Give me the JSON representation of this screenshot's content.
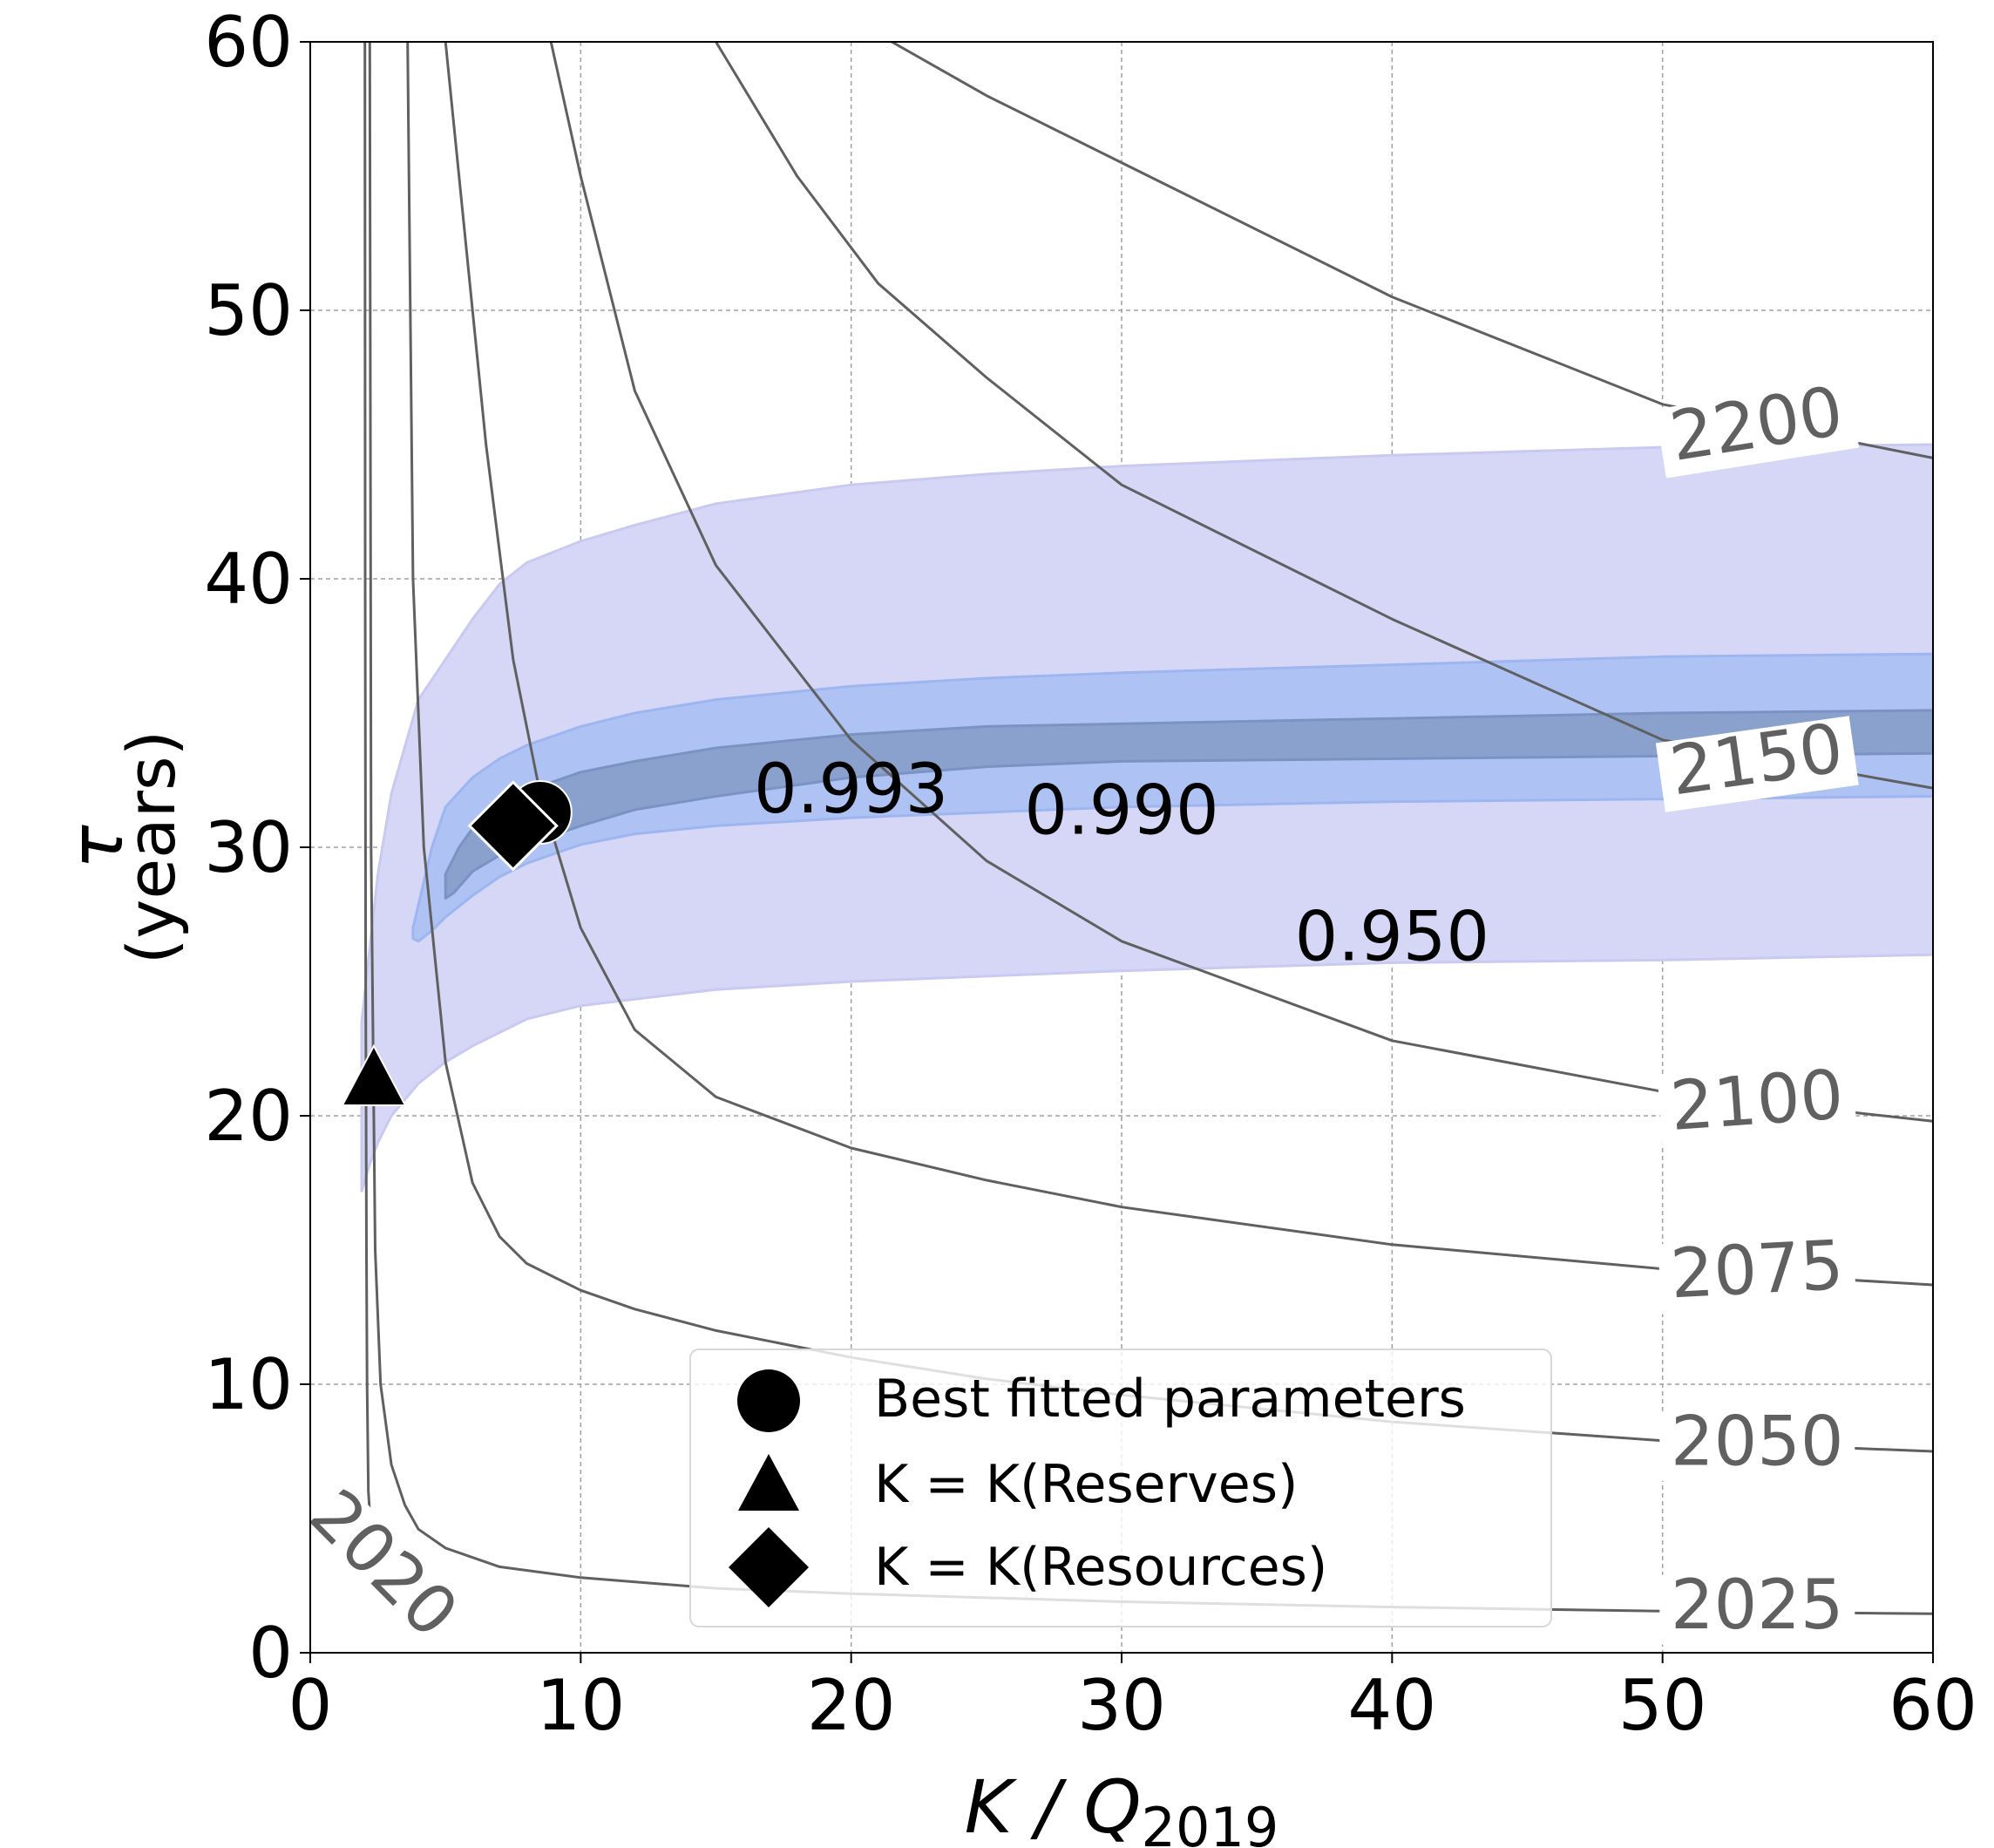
{
  "chart_data": {
    "type": "contour",
    "xlabel": "K / Q",
    "xlabel_subscript": "2019",
    "ylabel_symbol": "τ",
    "ylabel_units": "(years)",
    "xlim": [
      0,
      60
    ],
    "ylim": [
      0,
      60
    ],
    "xticks": [
      0,
      10,
      20,
      30,
      40,
      50,
      60
    ],
    "yticks": [
      0,
      10,
      20,
      30,
      40,
      50,
      60
    ],
    "grid": true,
    "colors": {
      "band_950": "#d6d6f6",
      "band_990": "#aec3f4",
      "band_993": "#8aa1ce",
      "contour": "#606060",
      "contour_label": "#606060",
      "marker": "#000000"
    },
    "confidence_regions": [
      {
        "level": "0.950",
        "label_pos": [
          40,
          26.5
        ],
        "upper": [
          [
            1.9,
            23.5
          ],
          [
            2.5,
            29
          ],
          [
            3,
            32
          ],
          [
            4,
            35.5
          ],
          [
            5,
            37
          ],
          [
            6,
            38.5
          ],
          [
            7,
            39.8
          ],
          [
            8,
            40.6
          ],
          [
            10,
            41.4
          ],
          [
            12,
            42
          ],
          [
            15,
            42.8
          ],
          [
            20,
            43.5
          ],
          [
            25,
            43.9
          ],
          [
            30,
            44.2
          ],
          [
            40,
            44.6
          ],
          [
            50,
            44.9
          ],
          [
            60,
            45
          ]
        ],
        "lower": [
          [
            60,
            26
          ],
          [
            50,
            25.8
          ],
          [
            40,
            25.7
          ],
          [
            30,
            25.4
          ],
          [
            20,
            25.0
          ],
          [
            15,
            24.7
          ],
          [
            10,
            24.1
          ],
          [
            8,
            23.6
          ],
          [
            6,
            22.6
          ],
          [
            5,
            22.0
          ],
          [
            4,
            21.2
          ],
          [
            3,
            20.0
          ],
          [
            2.5,
            19.0
          ],
          [
            2.2,
            18.2
          ],
          [
            1.9,
            17.2
          ]
        ]
      },
      {
        "level": "0.990",
        "label_pos": [
          30,
          31.2
        ],
        "upper": [
          [
            3.8,
            27
          ],
          [
            4.5,
            30
          ],
          [
            5,
            31.5
          ],
          [
            6,
            32.6
          ],
          [
            7,
            33.3
          ],
          [
            8,
            33.8
          ],
          [
            10,
            34.5
          ],
          [
            12,
            35
          ],
          [
            15,
            35.5
          ],
          [
            20,
            36
          ],
          [
            25,
            36.3
          ],
          [
            30,
            36.5
          ],
          [
            40,
            36.8
          ],
          [
            50,
            37.1
          ],
          [
            60,
            37.2
          ]
        ],
        "lower": [
          [
            60,
            31.9
          ],
          [
            50,
            31.8
          ],
          [
            40,
            31.7
          ],
          [
            30,
            31.5
          ],
          [
            20,
            31.1
          ],
          [
            15,
            30.8
          ],
          [
            12,
            30.5
          ],
          [
            10,
            30.1
          ],
          [
            8,
            29.4
          ],
          [
            7,
            28.9
          ],
          [
            6,
            28.2
          ],
          [
            5,
            27.4
          ],
          [
            4.5,
            26.9
          ],
          [
            4,
            26.5
          ],
          [
            3.8,
            26.6
          ]
        ]
      },
      {
        "level": "0.993",
        "label_pos": [
          20,
          32
        ],
        "upper": [
          [
            5,
            29
          ],
          [
            5.5,
            30
          ],
          [
            6,
            30.7
          ],
          [
            7,
            31.5
          ],
          [
            8,
            32.1
          ],
          [
            10,
            32.8
          ],
          [
            12,
            33.2
          ],
          [
            15,
            33.7
          ],
          [
            20,
            34.2
          ],
          [
            25,
            34.5
          ],
          [
            30,
            34.6
          ],
          [
            40,
            34.8
          ],
          [
            50,
            35
          ],
          [
            60,
            35.1
          ]
        ],
        "lower": [
          [
            60,
            33.5
          ],
          [
            50,
            33.4
          ],
          [
            40,
            33.3
          ],
          [
            30,
            33.2
          ],
          [
            25,
            33.0
          ],
          [
            20,
            32.6
          ],
          [
            15,
            31.9
          ],
          [
            12,
            31.4
          ],
          [
            10,
            30.8
          ],
          [
            8,
            30.1
          ],
          [
            7,
            29.7
          ],
          [
            6,
            29.1
          ],
          [
            5.3,
            28.3
          ],
          [
            5,
            28.1
          ]
        ]
      }
    ],
    "contours": [
      {
        "label": "2020",
        "points": [
          [
            2.02,
            60
          ],
          [
            2.03,
            40
          ],
          [
            2.05,
            25
          ],
          [
            2.08,
            15
          ],
          [
            2.1,
            10
          ],
          [
            2.15,
            6
          ],
          [
            2.2,
            5.2
          ]
        ],
        "label_pos": [
          2.6,
          3.2
        ],
        "label_angle": 45
      },
      {
        "label": "2025",
        "points": [
          [
            2.2,
            60
          ],
          [
            2.25,
            30
          ],
          [
            2.4,
            15
          ],
          [
            2.6,
            10
          ],
          [
            3,
            7
          ],
          [
            3.5,
            5.5
          ],
          [
            4,
            4.6
          ],
          [
            5,
            3.9
          ],
          [
            7,
            3.2
          ],
          [
            10,
            2.8
          ],
          [
            15,
            2.4
          ],
          [
            20,
            2.2
          ],
          [
            30,
            1.9
          ],
          [
            40,
            1.7
          ],
          [
            50,
            1.55
          ],
          [
            60,
            1.45
          ]
        ],
        "label_pos": [
          53.5,
          1.6
        ],
        "label_angle": 0
      },
      {
        "label": "2050",
        "points": [
          [
            3.6,
            60
          ],
          [
            3.8,
            40
          ],
          [
            4.2,
            30
          ],
          [
            5,
            22
          ],
          [
            6,
            17.5
          ],
          [
            7,
            15.5
          ],
          [
            8,
            14.5
          ],
          [
            10,
            13.5
          ],
          [
            12,
            12.8
          ],
          [
            15,
            12
          ],
          [
            20,
            11
          ],
          [
            25,
            10.2
          ],
          [
            30,
            9.6
          ],
          [
            40,
            8.6
          ],
          [
            50,
            7.9
          ],
          [
            60,
            7.5
          ]
        ],
        "label_pos": [
          53.5,
          7.7
        ],
        "label_angle": 0
      },
      {
        "label": "2075",
        "points": [
          [
            5,
            60
          ],
          [
            5.5,
            55
          ],
          [
            6.5,
            45
          ],
          [
            7.5,
            37
          ],
          [
            8.5,
            32
          ],
          [
            10,
            27
          ],
          [
            12,
            23.2
          ],
          [
            15,
            20.7
          ],
          [
            20,
            18.8
          ],
          [
            25,
            17.6
          ],
          [
            30,
            16.6
          ],
          [
            40,
            15.2
          ],
          [
            50,
            14.3
          ],
          [
            60,
            13.7
          ]
        ],
        "label_pos": [
          53.5,
          14.1
        ],
        "label_angle": -3
      },
      {
        "label": "2100",
        "points": [
          [
            8.9,
            60
          ],
          [
            10,
            55
          ],
          [
            12,
            47
          ],
          [
            15,
            40.5
          ],
          [
            20,
            34
          ],
          [
            25,
            29.5
          ],
          [
            30,
            26.5
          ],
          [
            40,
            22.8
          ],
          [
            50,
            20.9
          ],
          [
            60,
            19.8
          ]
        ],
        "label_pos": [
          53.5,
          20.4
        ],
        "label_angle": -4
      },
      {
        "label": "2150",
        "points": [
          [
            15,
            60
          ],
          [
            18,
            55
          ],
          [
            21,
            51
          ],
          [
            25,
            47.5
          ],
          [
            30,
            43.5
          ],
          [
            40,
            38.5
          ],
          [
            50,
            34
          ],
          [
            60,
            32.2
          ]
        ],
        "label_pos": [
          53.5,
          33.1
        ],
        "label_angle": -8
      },
      {
        "label": "2200",
        "points": [
          [
            21.5,
            60
          ],
          [
            25,
            58
          ],
          [
            30,
            55.5
          ],
          [
            40,
            50.5
          ],
          [
            50,
            46.5
          ],
          [
            60,
            44.5
          ]
        ],
        "label_pos": [
          53.5,
          45.6
        ],
        "label_angle": -9
      }
    ],
    "markers": [
      {
        "name": "best-fit-marker",
        "shape": "circle",
        "x": 8.5,
        "y": 31.3
      },
      {
        "name": "reserves-marker",
        "shape": "triangle",
        "x": 2.35,
        "y": 21.3
      },
      {
        "name": "resources-marker",
        "shape": "diamond",
        "x": 7.5,
        "y": 30.8
      }
    ],
    "legend": {
      "placement": "lower-center",
      "entries": [
        {
          "shape": "circle",
          "label": "Best fitted parameters"
        },
        {
          "shape": "triangle",
          "label": "K = K(Reserves)"
        },
        {
          "shape": "diamond",
          "label": "K = K(Resources)"
        }
      ]
    }
  }
}
